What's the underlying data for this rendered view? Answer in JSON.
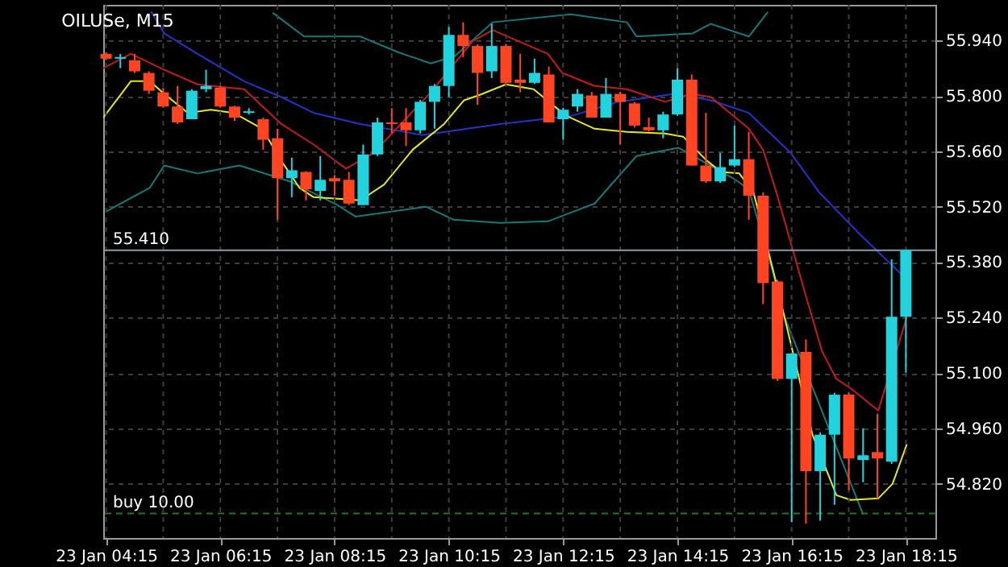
{
  "chart_data": {
    "type": "candlestick",
    "title": "OILUSe, M15",
    "x": [
      "--01-23T04:15",
      "--01-23T04:30",
      "--01-23T04:45",
      "--01-23T05:00",
      "--01-23T05:15",
      "--01-23T05:30",
      "--01-23T05:45",
      "--01-23T06:00",
      "--01-23T06:15",
      "--01-23T06:30",
      "--01-23T06:45",
      "--01-23T07:00",
      "--01-23T07:15",
      "--01-23T07:30",
      "--01-23T07:45",
      "--01-23T08:00",
      "--01-23T08:15",
      "--01-23T08:30",
      "--01-23T08:45",
      "--01-23T09:00",
      "--01-23T09:15",
      "--01-23T09:30",
      "--01-23T09:45",
      "--01-23T10:00",
      "--01-23T10:15",
      "--01-23T10:30",
      "--01-23T10:45",
      "--01-23T11:00",
      "--01-23T11:15",
      "--01-23T11:30",
      "--01-23T11:45",
      "--01-23T12:00",
      "--01-23T12:15",
      "--01-23T12:30",
      "--01-23T12:45",
      "--01-23T13:00",
      "--01-23T13:15",
      "--01-23T13:30",
      "--01-23T13:45",
      "--01-23T14:00",
      "--01-23T14:15",
      "--01-23T14:30",
      "--01-23T14:45",
      "--01-23T15:00",
      "--01-23T15:15",
      "--01-23T15:30",
      "--01-23T15:45",
      "--01-23T16:00",
      "--01-23T16:15",
      "--01-23T16:30",
      "--01-23T16:45",
      "--01-23T17:00",
      "--01-23T17:15",
      "--01-23T17:30",
      "--01-23T17:45",
      "--01-23T18:00",
      "--01-23T18:15"
    ],
    "ohlc": [
      [
        55.906,
        55.91,
        55.89,
        55.894
      ],
      [
        55.894,
        55.906,
        55.87,
        55.898
      ],
      [
        55.89,
        55.906,
        55.858,
        55.862
      ],
      [
        55.858,
        55.862,
        55.805,
        55.813
      ],
      [
        55.809,
        55.82,
        55.77,
        55.773
      ],
      [
        55.773,
        55.825,
        55.729,
        55.733
      ],
      [
        55.741,
        55.817,
        55.741,
        55.813
      ],
      [
        55.817,
        55.866,
        55.809,
        55.825
      ],
      [
        55.821,
        55.825,
        55.77,
        55.773
      ],
      [
        55.773,
        55.775,
        55.737,
        55.745
      ],
      [
        55.757,
        55.769,
        55.753,
        55.761
      ],
      [
        55.741,
        55.745,
        55.664,
        55.689
      ],
      [
        55.693,
        55.717,
        55.487,
        55.592
      ],
      [
        55.592,
        55.644,
        55.544,
        55.612
      ],
      [
        55.608,
        55.61,
        55.536,
        55.564
      ],
      [
        55.56,
        55.648,
        55.536,
        55.588
      ],
      [
        55.592,
        55.6,
        55.548,
        55.584
      ],
      [
        55.588,
        55.608,
        55.524,
        55.528
      ],
      [
        55.524,
        55.677,
        55.524,
        55.652
      ],
      [
        55.652,
        55.745,
        55.648,
        55.733
      ],
      [
        55.733,
        55.769,
        55.705,
        55.729
      ],
      [
        55.733,
        55.769,
        55.673,
        55.713
      ],
      [
        55.713,
        55.79,
        55.705,
        55.785
      ],
      [
        55.785,
        55.83,
        55.717,
        55.825
      ],
      [
        55.825,
        55.974,
        55.797,
        55.954
      ],
      [
        55.954,
        55.986,
        55.898,
        55.926
      ],
      [
        55.926,
        55.93,
        55.777,
        55.858
      ],
      [
        55.862,
        55.982,
        55.845,
        55.926
      ],
      [
        55.926,
        55.93,
        55.83,
        55.833
      ],
      [
        55.841,
        55.906,
        55.809,
        55.833
      ],
      [
        55.833,
        55.894,
        55.83,
        55.858
      ],
      [
        55.854,
        55.874,
        55.733,
        55.733
      ],
      [
        55.741,
        55.77,
        55.689,
        55.765
      ],
      [
        55.773,
        55.817,
        55.76,
        55.805
      ],
      [
        55.801,
        55.81,
        55.745,
        55.745
      ],
      [
        55.745,
        55.845,
        55.745,
        55.805
      ],
      [
        55.805,
        55.81,
        55.677,
        55.785
      ],
      [
        55.781,
        55.785,
        55.72,
        55.725
      ],
      [
        55.721,
        55.745,
        55.71,
        55.713
      ],
      [
        55.713,
        55.76,
        55.693,
        55.753
      ],
      [
        55.753,
        55.87,
        55.75,
        55.841
      ],
      [
        55.841,
        55.854,
        55.624,
        55.624
      ],
      [
        55.624,
        55.757,
        55.58,
        55.584
      ],
      [
        55.584,
        55.656,
        55.58,
        55.62
      ],
      [
        55.624,
        55.725,
        55.62,
        55.64
      ],
      [
        55.64,
        55.709,
        55.487,
        55.548
      ],
      [
        55.548,
        55.556,
        55.274,
        55.327
      ],
      [
        55.331,
        55.335,
        55.08,
        55.085
      ],
      [
        55.085,
        55.15,
        54.723,
        55.149
      ],
      [
        55.153,
        55.185,
        54.719,
        54.852
      ],
      [
        54.852,
        54.95,
        54.727,
        54.944
      ],
      [
        54.944,
        55.05,
        54.767,
        55.045
      ],
      [
        55.045,
        55.05,
        54.804,
        54.884
      ],
      [
        54.88,
        54.96,
        54.824,
        54.892
      ],
      [
        54.9,
        54.997,
        54.783,
        54.884
      ],
      [
        54.876,
        55.387,
        54.87,
        55.242
      ],
      [
        55.242,
        55.411,
        55.101,
        55.411
      ]
    ],
    "colors": [
      "#ff4422",
      "#22d3de",
      "#ff4422",
      "#ff4422",
      "#ff4422",
      "#ff4422",
      "#22d3de",
      "#22d3de",
      "#ff4422",
      "#ff4422",
      "#22d3de",
      "#ff4422",
      "#ff4422",
      "#22d3de",
      "#ff4422",
      "#22d3de",
      "#ff4422",
      "#ff4422",
      "#22d3de",
      "#22d3de",
      "#ff4422",
      "#ff4422",
      "#22d3de",
      "#22d3de",
      "#22d3de",
      "#ff4422",
      "#ff4422",
      "#22d3de",
      "#ff4422",
      "#ff4422",
      "#22d3de",
      "#ff4422",
      "#22d3de",
      "#22d3de",
      "#ff4422",
      "#22d3de",
      "#ff4422",
      "#ff4422",
      "#ff4422",
      "#22d3de",
      "#22d3de",
      "#ff4422",
      "#ff4422",
      "#22d3de",
      "#22d3de",
      "#ff4422",
      "#ff4422",
      "#ff4422",
      "#22d3de",
      "#ff4422",
      "#22d3de",
      "#22d3de",
      "#ff4422",
      "#22d3de",
      "#ff4422",
      "#22d3de",
      "#22d3de"
    ],
    "series": [
      {
        "type": "line",
        "color": "#137a7a",
        "x": [
          "--01-23T07:10",
          "--01-23T07:43",
          "--01-23T08:42",
          "--01-23T09:22",
          "--01-23T09:56",
          "--01-23T10:21",
          "--01-23T11:01",
          "--01-23T12:23",
          "--01-23T13:22",
          "--01-23T13:32",
          "--01-23T14:31",
          "--01-23T14:50",
          "--01-23T15:30",
          "--01-23T15:50"
        ],
        "values": [
          56.01,
          55.95,
          55.95,
          55.91,
          55.882,
          55.9,
          55.986,
          56.006,
          55.986,
          55.95,
          55.958,
          55.982,
          55.95,
          56.012
        ]
      },
      {
        "type": "line",
        "color": "#2233c8",
        "x": [
          "--01-23T05:02",
          "--01-23T05:16",
          "--01-23T05:51",
          "--01-23T06:40",
          "--01-23T07:19",
          "--01-23T07:53",
          "--01-23T08:42",
          "--01-23T09:47",
          "--01-23T11:09",
          "--01-23T12:23",
          "--01-23T13:13",
          "--01-23T14:12",
          "--01-23T14:50",
          "--01-23T15:30",
          "--01-23T16:14",
          "--01-23T16:44",
          "--01-23T17:28",
          "--01-23T18:13"
        ],
        "values": [
          56.014,
          55.958,
          55.906,
          55.837,
          55.797,
          55.757,
          55.729,
          55.701,
          55.729,
          55.749,
          55.785,
          55.805,
          55.789,
          55.757,
          55.656,
          55.556,
          55.447,
          55.343
        ]
      },
      {
        "type": "line",
        "color": "#137a7a",
        "x": [
          "--01-23T04:15",
          "--01-23T05:01",
          "--01-23T05:16",
          "--01-23T05:51",
          "--01-23T06:35",
          "--01-23T07:28",
          "--01-23T08:18",
          "--01-23T08:37",
          "--01-23T09:51",
          "--01-23T10:20",
          "--01-23T11:09",
          "--01-23T11:59",
          "--01-23T12:48",
          "--01-23T13:32",
          "--01-23T14:16",
          "--01-23T15:16",
          "--01-23T15:30",
          "--01-23T15:53",
          "--01-23T16:08",
          "--01-23T17:30"
        ],
        "values": [
          55.508,
          55.568,
          55.624,
          55.604,
          55.624,
          55.584,
          55.524,
          55.495,
          55.52,
          55.487,
          55.479,
          55.483,
          55.528,
          55.648,
          55.669,
          55.588,
          55.564,
          55.375,
          55.238,
          54.743
        ]
      },
      {
        "type": "line",
        "color": "#c41a1a",
        "x": [
          "--01-23T04:12",
          "--01-23T04:41",
          "--01-23T05:16",
          "--01-23T05:51",
          "--01-23T06:40",
          "--01-23T07:19",
          "--01-23T07:53",
          "--01-23T08:27",
          "--01-23T08:56",
          "--01-23T09:56",
          "--01-23T10:40",
          "--01-23T11:01",
          "--01-23T11:59",
          "--01-23T12:14",
          "--01-23T12:48",
          "--01-23T13:22",
          "--01-23T14:02",
          "--01-23T14:31",
          "--01-23T14:50",
          "--01-23T15:30",
          "--01-23T15:45",
          "--01-23T15:59",
          "--01-23T16:29",
          "--01-23T16:47",
          "--01-23T17:02",
          "--01-23T17:17",
          "--01-23T17:46",
          "--01-23T18:16"
        ],
        "values": [
          55.87,
          55.906,
          55.866,
          55.829,
          55.817,
          55.729,
          55.677,
          55.616,
          55.656,
          55.809,
          55.938,
          55.966,
          55.906,
          55.858,
          55.825,
          55.817,
          55.785,
          55.805,
          55.797,
          55.717,
          55.664,
          55.556,
          55.302,
          55.154,
          55.085,
          55.061,
          55.005,
          55.242
        ]
      },
      {
        "type": "line",
        "color": "#e6e620",
        "x": [
          "--01-23T04:12",
          "--01-23T04:41",
          "--01-23T05:01",
          "--01-23T05:16",
          "--01-23T05:41",
          "--01-23T06:05",
          "--01-23T06:29",
          "--01-23T06:59",
          "--01-23T07:19",
          "--01-23T07:38",
          "--01-23T07:53",
          "--01-23T08:18",
          "--01-23T08:42",
          "--01-23T09:07",
          "--01-23T09:37",
          "--01-23T10:10",
          "--01-23T10:31",
          "--01-23T10:46",
          "--01-23T11:15",
          "--01-23T11:44",
          "--01-23T12:04",
          "--01-23T12:19",
          "--01-23T12:48",
          "--01-23T13:22",
          "--01-23T14:02",
          "--01-23T14:21",
          "--01-23T14:46",
          "--01-23T15:01",
          "--01-23T15:20",
          "--01-23T15:35",
          "--01-23T15:59",
          "--01-23T16:22",
          "--01-23T16:37",
          "--01-23T17:02",
          "--01-23T17:17",
          "--01-23T17:46",
          "--01-23T18:01",
          "--01-23T18:16"
        ],
        "values": [
          55.745,
          55.837,
          55.837,
          55.805,
          55.757,
          55.765,
          55.757,
          55.717,
          55.636,
          55.568,
          55.544,
          55.54,
          55.536,
          55.576,
          55.664,
          55.729,
          55.789,
          55.801,
          55.829,
          55.817,
          55.777,
          55.749,
          55.717,
          55.709,
          55.705,
          55.697,
          55.636,
          55.608,
          55.604,
          55.556,
          55.326,
          55.095,
          54.943,
          54.791,
          54.779,
          54.783,
          54.82,
          54.92
        ]
      }
    ],
    "xlim": [
      "--01-23T04:12",
      "--01-23T18:46"
    ],
    "xticks": [
      {
        "value": "--01-23T04:15",
        "label": "23 Jan 04:15"
      },
      {
        "value": "--01-23T05:15",
        "label": null
      },
      {
        "value": "--01-23T06:15",
        "label": "23 Jan 06:15"
      },
      {
        "value": "--01-23T07:15",
        "label": null
      },
      {
        "value": "--01-23T08:15",
        "label": "23 Jan 08:15"
      },
      {
        "value": "--01-23T09:15",
        "label": null
      },
      {
        "value": "--01-23T10:15",
        "label": "23 Jan 10:15"
      },
      {
        "value": "--01-23T11:15",
        "label": null
      },
      {
        "value": "--01-23T12:15",
        "label": "23 Jan 12:15"
      },
      {
        "value": "--01-23T13:15",
        "label": null
      },
      {
        "value": "--01-23T14:15",
        "label": "23 Jan 14:15"
      },
      {
        "value": "--01-23T15:15",
        "label": null
      },
      {
        "value": "--01-23T16:15",
        "label": "23 Jan 16:15"
      },
      {
        "value": "--01-23T17:15",
        "label": null
      },
      {
        "value": "--01-23T18:15",
        "label": "23 Jan 18:15"
      }
    ],
    "ylim": [
      54.683,
      56.03
    ],
    "yticks": [
      {
        "value": 54.82,
        "label": "54.820"
      },
      {
        "value": 54.96,
        "label": "54.960"
      },
      {
        "value": 55.1,
        "label": "55.100"
      },
      {
        "value": 55.24,
        "label": "55.240"
      },
      {
        "value": 55.38,
        "label": "55.380"
      },
      {
        "value": 55.52,
        "label": "55.520"
      },
      {
        "value": 55.66,
        "label": "55.660"
      },
      {
        "value": 55.8,
        "label": "55.800"
      },
      {
        "value": 55.94,
        "label": "55.940"
      }
    ],
    "ref_lines": [
      {
        "axis": "y",
        "value": 55.41,
        "label": "55.410",
        "color": "#8a9aa8",
        "line_style": "solid"
      },
      {
        "axis": "y",
        "value": 54.745,
        "label": "buy 10.00",
        "color": "#1f7a1f",
        "line_style": "dashed"
      }
    ],
    "grid": true
  }
}
